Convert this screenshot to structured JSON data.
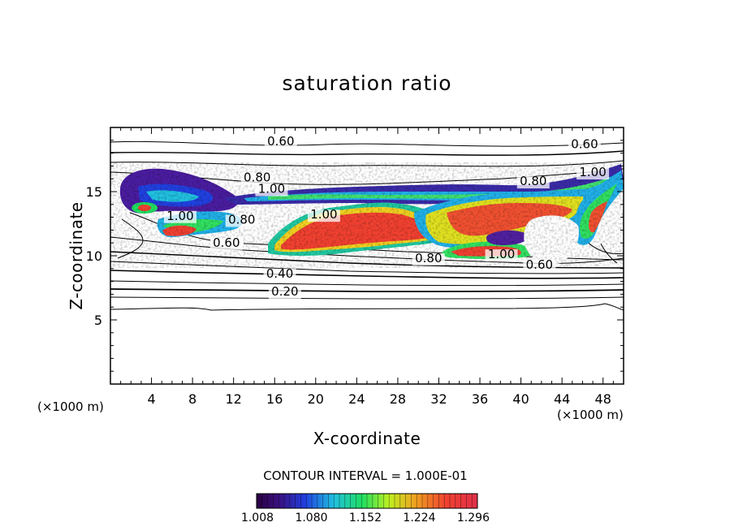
{
  "chart_data": {
    "type": "heatmap",
    "title": "saturation ratio",
    "xlabel": "X-coordinate",
    "ylabel": "Z-coordinate",
    "x_unit_label": "(×1000 m)",
    "y_unit_label": "(×1000 m)",
    "xlim": [
      0,
      50
    ],
    "ylim": [
      0,
      20
    ],
    "x_ticks": [
      4,
      8,
      12,
      16,
      20,
      24,
      28,
      32,
      36,
      40,
      44,
      48
    ],
    "y_ticks": [
      5,
      10,
      15
    ],
    "contour_interval_text": "CONTOUR INTERVAL = 1.000E-01",
    "contour_labels": [
      {
        "text": "0.60",
        "x": 16.6,
        "y": 18.6
      },
      {
        "text": "0.60",
        "x": 46.2,
        "y": 18.4
      },
      {
        "text": "0.80",
        "x": 14.3,
        "y": 15.8
      },
      {
        "text": "1.00",
        "x": 15.7,
        "y": 14.9
      },
      {
        "text": "1.00",
        "x": 47.0,
        "y": 16.2
      },
      {
        "text": "0.80",
        "x": 41.2,
        "y": 15.5
      },
      {
        "text": "1.00",
        "x": 6.8,
        "y": 12.8
      },
      {
        "text": "0.80",
        "x": 12.8,
        "y": 12.5
      },
      {
        "text": "1.00",
        "x": 20.8,
        "y": 12.9
      },
      {
        "text": "0.60",
        "x": 11.3,
        "y": 10.7
      },
      {
        "text": "0.80",
        "x": 31.0,
        "y": 9.5
      },
      {
        "text": "1.00",
        "x": 38.1,
        "y": 9.8
      },
      {
        "text": "0.60",
        "x": 41.8,
        "y": 9.0
      },
      {
        "text": "0.40",
        "x": 16.5,
        "y": 8.3
      },
      {
        "text": "0.20",
        "x": 17.0,
        "y": 6.9
      }
    ],
    "colorbar": {
      "range": [
        1.008,
        1.296
      ],
      "tick_labels": [
        "1.008",
        "1.080",
        "1.152",
        "1.224",
        "1.296"
      ]
    }
  }
}
